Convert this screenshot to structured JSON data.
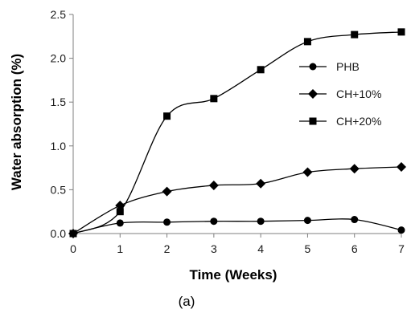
{
  "chart_data": {
    "type": "line",
    "title": "",
    "xlabel": "Time (Weeks)",
    "ylabel": "Water absorption (%)",
    "caption": "(a)",
    "xlim": [
      0,
      7
    ],
    "ylim": [
      0,
      2.5
    ],
    "x": [
      0,
      1,
      2,
      3,
      4,
      5,
      6,
      7
    ],
    "x_ticks": [
      "0",
      "1",
      "2",
      "3",
      "4",
      "5",
      "6",
      "7"
    ],
    "y_ticks": [
      "0.0",
      "0.5",
      "1.0",
      "1.5",
      "2.0",
      "2.5"
    ],
    "grid": false,
    "legend_position": "right",
    "series": [
      {
        "name": "PHB",
        "marker": "circle",
        "values": [
          0.0,
          0.12,
          0.13,
          0.14,
          0.14,
          0.15,
          0.16,
          0.04
        ]
      },
      {
        "name": "CH+10%",
        "marker": "diamond",
        "values": [
          0.0,
          0.32,
          0.48,
          0.55,
          0.57,
          0.7,
          0.74,
          0.76
        ]
      },
      {
        "name": "CH+20%",
        "marker": "square",
        "values": [
          0.0,
          0.25,
          1.34,
          1.54,
          1.87,
          2.19,
          2.27,
          2.3
        ]
      }
    ],
    "color": "#000000"
  }
}
